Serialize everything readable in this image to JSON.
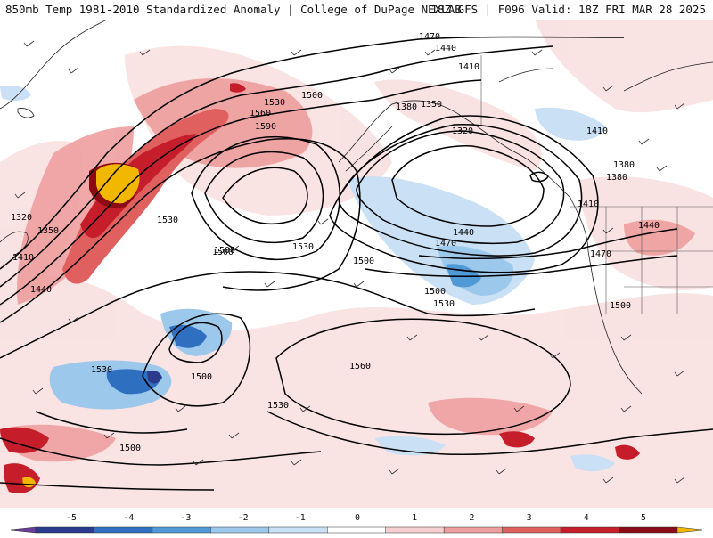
{
  "header": {
    "title_left": "850mb Temp 1981-2010 Standardized Anomaly | College of DuPage NEXLAB",
    "title_right": "18Z GFS | F096 Valid: 18Z FRI MAR 28 2025"
  },
  "colorbar": {
    "ticks": [
      "-5",
      "-4",
      "-3",
      "-2",
      "-1",
      "0",
      "1",
      "2",
      "3",
      "4",
      "5"
    ],
    "colors": [
      "#6a3d9a",
      "#2b3a8c",
      "#2f6fc0",
      "#4f9ad6",
      "#9cc8ec",
      "#c9e0f5",
      "#ffffff",
      "#f6d0d0",
      "#ee9e9e",
      "#e06060",
      "#c51e2a",
      "#8b0a14",
      "#f2b800"
    ]
  },
  "contour_labels": [
    {
      "text": "1470"
    },
    {
      "text": "1440"
    },
    {
      "text": "1410"
    },
    {
      "text": "1500"
    },
    {
      "text": "1530"
    },
    {
      "text": "1560"
    },
    {
      "text": "1590"
    },
    {
      "text": "1380"
    },
    {
      "text": "1350"
    },
    {
      "text": "1320"
    },
    {
      "text": "1530"
    },
    {
      "text": "1500"
    },
    {
      "text": "1410"
    },
    {
      "text": "1440"
    },
    {
      "text": "1380"
    },
    {
      "text": "1350"
    },
    {
      "text": "1320"
    },
    {
      "text": "1500"
    },
    {
      "text": "1530"
    },
    {
      "text": "1500"
    },
    {
      "text": "1470"
    },
    {
      "text": "1440"
    },
    {
      "text": "1410"
    },
    {
      "text": "1380"
    },
    {
      "text": "1410"
    },
    {
      "text": "1440"
    },
    {
      "text": "1470"
    },
    {
      "text": "1500"
    },
    {
      "text": "1530"
    },
    {
      "text": "1500"
    },
    {
      "text": "1560"
    },
    {
      "text": "1530"
    },
    {
      "text": "1530"
    },
    {
      "text": "1500"
    },
    {
      "text": "1500"
    }
  ]
}
